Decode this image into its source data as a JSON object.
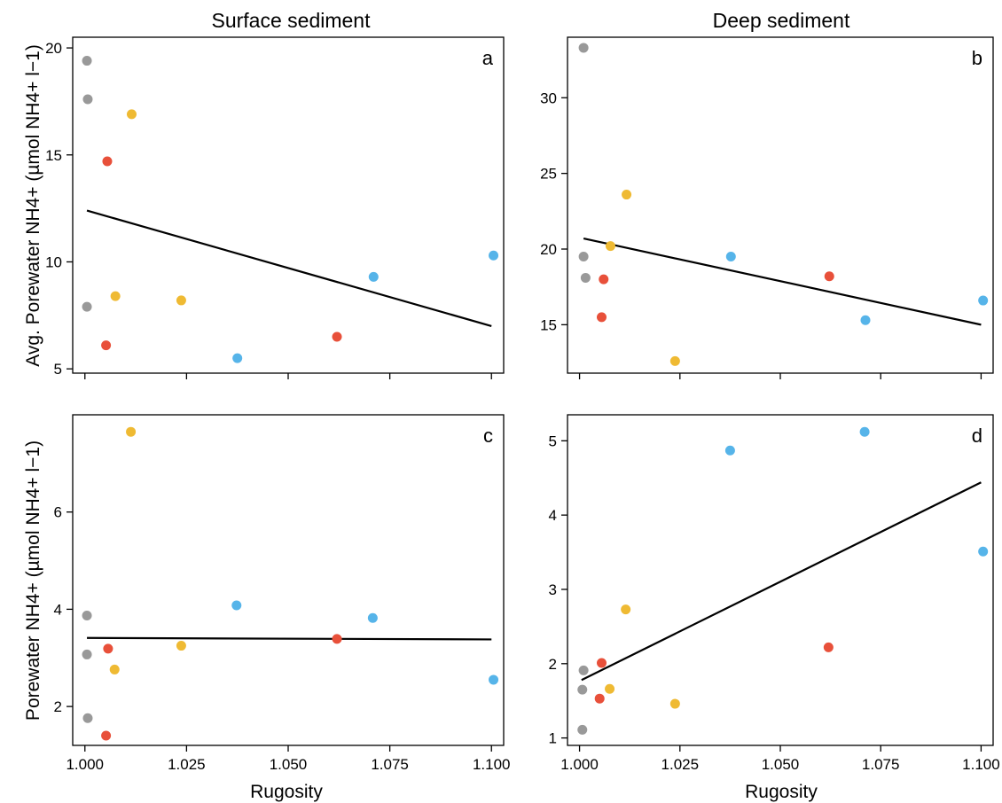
{
  "column_titles": [
    "Surface sediment",
    "Deep sediment"
  ],
  "ylabel_top": "Avg. Porewater NH4+ (µmol NH4+ l−1)",
  "ylabel_bottom": "Porewater NH4+ (µmol NH4+ l−1)",
  "xlabel": "Rugosity",
  "colors": {
    "gray": "#999999",
    "orange": "#e8503a",
    "yellow": "#efba33",
    "blue": "#56b4e9",
    "line": "#000000"
  },
  "chart_data": [
    {
      "panel": "a",
      "type": "scatter",
      "xlim": [
        0.997,
        1.103
      ],
      "ylim": [
        4.8,
        20.5
      ],
      "xticks": [
        "1.000",
        "1.025",
        "1.050",
        "1.075",
        "1.100"
      ],
      "show_xtick_labels": false,
      "yticks": [
        5,
        10,
        15,
        20
      ],
      "points": [
        {
          "x": 1.0005,
          "y": 19.4,
          "color": "gray"
        },
        {
          "x": 1.0007,
          "y": 17.6,
          "color": "gray"
        },
        {
          "x": 1.0005,
          "y": 7.9,
          "color": "gray"
        },
        {
          "x": 1.0115,
          "y": 16.9,
          "color": "yellow"
        },
        {
          "x": 1.0075,
          "y": 8.4,
          "color": "yellow"
        },
        {
          "x": 1.0237,
          "y": 8.2,
          "color": "yellow"
        },
        {
          "x": 1.0055,
          "y": 14.7,
          "color": "orange"
        },
        {
          "x": 1.0052,
          "y": 6.1,
          "color": "orange"
        },
        {
          "x": 1.062,
          "y": 6.5,
          "color": "orange"
        },
        {
          "x": 1.0375,
          "y": 5.5,
          "color": "blue"
        },
        {
          "x": 1.071,
          "y": 9.3,
          "color": "blue"
        },
        {
          "x": 1.1005,
          "y": 10.3,
          "color": "blue"
        }
      ],
      "fit_line": {
        "x": [
          1.0005,
          1.1
        ],
        "y": [
          12.4,
          7.0
        ]
      }
    },
    {
      "panel": "b",
      "type": "scatter",
      "xlim": [
        0.997,
        1.103
      ],
      "ylim": [
        11.8,
        34.0
      ],
      "xticks": [
        "1.000",
        "1.025",
        "1.050",
        "1.075",
        "1.100"
      ],
      "show_xtick_labels": false,
      "yticks": [
        15,
        20,
        25,
        30
      ],
      "points": [
        {
          "x": 1.001,
          "y": 33.3,
          "color": "gray"
        },
        {
          "x": 1.001,
          "y": 19.5,
          "color": "gray"
        },
        {
          "x": 1.0015,
          "y": 18.1,
          "color": "gray"
        },
        {
          "x": 1.0117,
          "y": 23.6,
          "color": "yellow"
        },
        {
          "x": 1.0077,
          "y": 20.2,
          "color": "yellow"
        },
        {
          "x": 1.0238,
          "y": 12.6,
          "color": "yellow"
        },
        {
          "x": 1.006,
          "y": 18.0,
          "color": "orange"
        },
        {
          "x": 1.0055,
          "y": 15.5,
          "color": "orange"
        },
        {
          "x": 1.0622,
          "y": 18.2,
          "color": "orange"
        },
        {
          "x": 1.0377,
          "y": 19.5,
          "color": "blue"
        },
        {
          "x": 1.0712,
          "y": 15.3,
          "color": "blue"
        },
        {
          "x": 1.1005,
          "y": 16.6,
          "color": "blue"
        }
      ],
      "fit_line": {
        "x": [
          1.001,
          1.1
        ],
        "y": [
          20.7,
          15.0
        ]
      }
    },
    {
      "panel": "c",
      "type": "scatter",
      "xlim": [
        0.997,
        1.103
      ],
      "ylim": [
        1.2,
        8.0
      ],
      "xticks": [
        "1.000",
        "1.025",
        "1.050",
        "1.075",
        "1.100"
      ],
      "show_xtick_labels": true,
      "yticks": [
        2,
        4,
        6
      ],
      "points": [
        {
          "x": 1.0005,
          "y": 3.87,
          "color": "gray"
        },
        {
          "x": 1.0005,
          "y": 3.07,
          "color": "gray"
        },
        {
          "x": 1.0007,
          "y": 1.76,
          "color": "gray"
        },
        {
          "x": 1.0113,
          "y": 7.65,
          "color": "yellow"
        },
        {
          "x": 1.0073,
          "y": 2.76,
          "color": "yellow"
        },
        {
          "x": 1.0237,
          "y": 3.25,
          "color": "yellow"
        },
        {
          "x": 1.0057,
          "y": 3.19,
          "color": "orange"
        },
        {
          "x": 1.0052,
          "y": 1.4,
          "color": "orange"
        },
        {
          "x": 1.062,
          "y": 3.39,
          "color": "orange"
        },
        {
          "x": 1.0373,
          "y": 4.08,
          "color": "blue"
        },
        {
          "x": 1.0708,
          "y": 3.82,
          "color": "blue"
        },
        {
          "x": 1.1005,
          "y": 2.55,
          "color": "blue"
        }
      ],
      "fit_line": {
        "x": [
          1.0005,
          1.1
        ],
        "y": [
          3.41,
          3.38
        ]
      }
    },
    {
      "panel": "d",
      "type": "scatter",
      "xlim": [
        0.997,
        1.103
      ],
      "ylim": [
        0.9,
        5.35
      ],
      "xticks": [
        "1.000",
        "1.025",
        "1.050",
        "1.075",
        "1.100"
      ],
      "show_xtick_labels": true,
      "yticks": [
        1,
        2,
        3,
        4,
        5
      ],
      "points": [
        {
          "x": 1.001,
          "y": 1.91,
          "color": "gray"
        },
        {
          "x": 1.0007,
          "y": 1.65,
          "color": "gray"
        },
        {
          "x": 1.0007,
          "y": 1.11,
          "color": "gray"
        },
        {
          "x": 1.0115,
          "y": 2.73,
          "color": "yellow"
        },
        {
          "x": 1.0075,
          "y": 1.66,
          "color": "yellow"
        },
        {
          "x": 1.0238,
          "y": 1.46,
          "color": "yellow"
        },
        {
          "x": 1.0055,
          "y": 2.01,
          "color": "orange"
        },
        {
          "x": 1.005,
          "y": 1.53,
          "color": "orange"
        },
        {
          "x": 1.062,
          "y": 2.22,
          "color": "orange"
        },
        {
          "x": 1.0375,
          "y": 4.87,
          "color": "blue"
        },
        {
          "x": 1.071,
          "y": 5.12,
          "color": "blue"
        },
        {
          "x": 1.1005,
          "y": 3.51,
          "color": "blue"
        }
      ],
      "fit_line": {
        "x": [
          1.0005,
          1.1
        ],
        "y": [
          1.78,
          4.44
        ]
      }
    }
  ]
}
